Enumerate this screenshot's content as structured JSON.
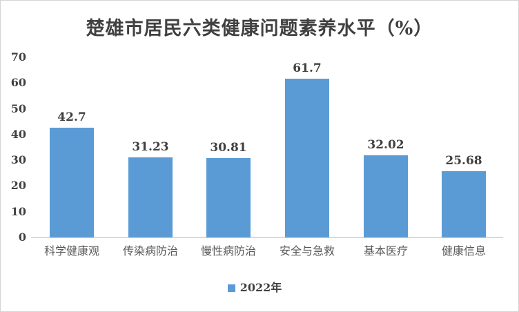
{
  "colors": {
    "bar": "#5b9bd5",
    "title_text": "#404040",
    "value_text": "#3f3f3f",
    "category_text": "#595959",
    "axis_line": "#d9d9d9",
    "frame_border": "#d4d4d4",
    "background": "#ffffff"
  },
  "chart_data": {
    "type": "bar",
    "title": "楚雄市居民六类健康问题素养水平（%）",
    "categories": [
      "科学健康观",
      "传染病防治",
      "慢性病防治",
      "安全与急救",
      "基本医疗",
      "健康信息"
    ],
    "series": [
      {
        "name": "2022年",
        "values": [
          42.7,
          31.23,
          30.81,
          61.7,
          32.02,
          25.68
        ],
        "labels": [
          "42.7",
          "31.23",
          "30.81",
          "61.7",
          "32.02",
          "25.68"
        ],
        "color": "#5b9bd5"
      }
    ],
    "xlabel": "",
    "ylabel": "",
    "ylim": [
      0,
      70
    ],
    "ytick_step": 10,
    "yticks": [
      "0",
      "10",
      "20",
      "30",
      "40",
      "50",
      "60",
      "70"
    ],
    "grid": false,
    "legend_position": "bottom",
    "legend": [
      "2022年"
    ],
    "data_labels_shown": true
  }
}
